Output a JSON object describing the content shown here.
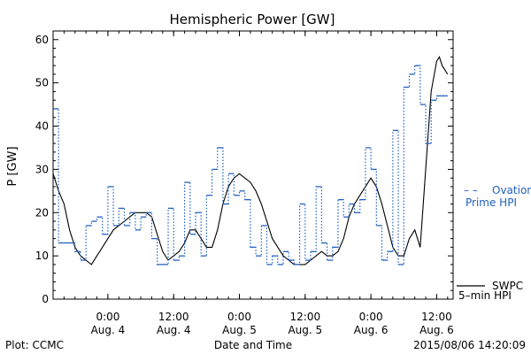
{
  "chart_data": {
    "type": "line",
    "title": "Hemispheric Power [GW]",
    "ylabel": "P [GW]",
    "xlabel": "Date and Time",
    "ylim": [
      0,
      62
    ],
    "xlim": [
      "2015-08-03 14:00",
      "2015-08-06 15:00"
    ],
    "yticks": [
      0,
      10,
      20,
      30,
      40,
      50,
      60
    ],
    "xticks": [
      {
        "x": "2015-08-04 00:00",
        "time": "0:00",
        "date": "Aug. 4"
      },
      {
        "x": "2015-08-04 12:00",
        "time": "12:00",
        "date": "Aug. 4"
      },
      {
        "x": "2015-08-05 00:00",
        "time": "0:00",
        "date": "Aug. 5"
      },
      {
        "x": "2015-08-05 12:00",
        "time": "12:00",
        "date": "Aug. 5"
      },
      {
        "x": "2015-08-06 00:00",
        "time": "0:00",
        "date": "Aug. 6"
      },
      {
        "x": "2015-08-06 12:00",
        "time": "12:00",
        "date": "Aug. 6"
      }
    ],
    "grid": false,
    "legend_placement": "right",
    "series": [
      {
        "name": "SWPC 5-min HPI",
        "style": "solid",
        "color": "#000000",
        "points": [
          [
            "2015-08-03 14:00",
            29
          ],
          [
            "2015-08-03 15:00",
            25
          ],
          [
            "2015-08-03 16:00",
            22
          ],
          [
            "2015-08-03 17:00",
            16
          ],
          [
            "2015-08-03 18:00",
            12
          ],
          [
            "2015-08-03 19:00",
            10
          ],
          [
            "2015-08-03 20:00",
            9
          ],
          [
            "2015-08-03 21:00",
            8
          ],
          [
            "2015-08-03 22:00",
            10
          ],
          [
            "2015-08-03 23:00",
            12
          ],
          [
            "2015-08-04 00:00",
            14
          ],
          [
            "2015-08-04 01:00",
            16
          ],
          [
            "2015-08-04 02:00",
            17
          ],
          [
            "2015-08-04 03:00",
            18
          ],
          [
            "2015-08-04 04:00",
            19
          ],
          [
            "2015-08-04 05:00",
            20
          ],
          [
            "2015-08-04 06:00",
            20
          ],
          [
            "2015-08-04 07:00",
            20
          ],
          [
            "2015-08-04 08:00",
            19
          ],
          [
            "2015-08-04 09:00",
            15
          ],
          [
            "2015-08-04 10:00",
            11
          ],
          [
            "2015-08-04 11:00",
            9
          ],
          [
            "2015-08-04 12:00",
            10
          ],
          [
            "2015-08-04 13:00",
            11
          ],
          [
            "2015-08-04 14:00",
            13
          ],
          [
            "2015-08-04 15:00",
            16
          ],
          [
            "2015-08-04 16:00",
            16
          ],
          [
            "2015-08-04 17:00",
            14
          ],
          [
            "2015-08-04 18:00",
            12
          ],
          [
            "2015-08-04 19:00",
            12
          ],
          [
            "2015-08-04 20:00",
            16
          ],
          [
            "2015-08-04 21:00",
            22
          ],
          [
            "2015-08-04 22:00",
            26
          ],
          [
            "2015-08-04 23:00",
            28
          ],
          [
            "2015-08-05 00:00",
            29
          ],
          [
            "2015-08-05 01:00",
            28
          ],
          [
            "2015-08-05 02:00",
            27
          ],
          [
            "2015-08-05 03:00",
            25
          ],
          [
            "2015-08-05 04:00",
            22
          ],
          [
            "2015-08-05 05:00",
            18
          ],
          [
            "2015-08-05 06:00",
            14
          ],
          [
            "2015-08-05 07:00",
            12
          ],
          [
            "2015-08-05 08:00",
            10
          ],
          [
            "2015-08-05 09:00",
            9
          ],
          [
            "2015-08-05 10:00",
            8
          ],
          [
            "2015-08-05 11:00",
            8
          ],
          [
            "2015-08-05 12:00",
            8
          ],
          [
            "2015-08-05 13:00",
            9
          ],
          [
            "2015-08-05 14:00",
            10
          ],
          [
            "2015-08-05 15:00",
            11
          ],
          [
            "2015-08-05 16:00",
            10
          ],
          [
            "2015-08-05 17:00",
            10
          ],
          [
            "2015-08-05 18:00",
            11
          ],
          [
            "2015-08-05 19:00",
            14
          ],
          [
            "2015-08-05 20:00",
            19
          ],
          [
            "2015-08-05 21:00",
            22
          ],
          [
            "2015-08-05 22:00",
            24
          ],
          [
            "2015-08-05 23:00",
            26
          ],
          [
            "2015-08-06 00:00",
            28
          ],
          [
            "2015-08-06 01:00",
            26
          ],
          [
            "2015-08-06 02:00",
            22
          ],
          [
            "2015-08-06 03:00",
            17
          ],
          [
            "2015-08-06 04:00",
            12
          ],
          [
            "2015-08-06 05:00",
            10
          ],
          [
            "2015-08-06 06:00",
            10
          ],
          [
            "2015-08-06 07:00",
            14
          ],
          [
            "2015-08-06 08:00",
            16
          ],
          [
            "2015-08-06 09:00",
            12
          ],
          [
            "2015-08-06 10:00",
            30
          ],
          [
            "2015-08-06 11:00",
            48
          ],
          [
            "2015-08-06 12:00",
            55
          ],
          [
            "2015-08-06 12:30",
            56
          ],
          [
            "2015-08-06 13:00",
            54
          ],
          [
            "2015-08-06 14:00",
            52
          ]
        ]
      },
      {
        "name": "Ovation Prime HPI",
        "style": "dotted-step",
        "color": "#1f5fbf",
        "points": [
          [
            "2015-08-03 14:00",
            44
          ],
          [
            "2015-08-03 15:00",
            13
          ],
          [
            "2015-08-03 17:00",
            13
          ],
          [
            "2015-08-03 18:00",
            11
          ],
          [
            "2015-08-03 19:00",
            9
          ],
          [
            "2015-08-03 20:00",
            17
          ],
          [
            "2015-08-03 21:00",
            18
          ],
          [
            "2015-08-03 22:00",
            19
          ],
          [
            "2015-08-03 23:00",
            15
          ],
          [
            "2015-08-04 00:00",
            26
          ],
          [
            "2015-08-04 01:00",
            17
          ],
          [
            "2015-08-04 02:00",
            21
          ],
          [
            "2015-08-04 03:00",
            17
          ],
          [
            "2015-08-04 04:00",
            20
          ],
          [
            "2015-08-04 05:00",
            16
          ],
          [
            "2015-08-04 06:00",
            19
          ],
          [
            "2015-08-04 07:00",
            20
          ],
          [
            "2015-08-04 08:00",
            14
          ],
          [
            "2015-08-04 09:00",
            8
          ],
          [
            "2015-08-04 11:00",
            21
          ],
          [
            "2015-08-04 12:00",
            9
          ],
          [
            "2015-08-04 13:00",
            10
          ],
          [
            "2015-08-04 14:00",
            27
          ],
          [
            "2015-08-04 15:00",
            15
          ],
          [
            "2015-08-04 16:00",
            20
          ],
          [
            "2015-08-04 17:00",
            10
          ],
          [
            "2015-08-04 18:00",
            24
          ],
          [
            "2015-08-04 19:00",
            30
          ],
          [
            "2015-08-04 20:00",
            35
          ],
          [
            "2015-08-04 21:00",
            22
          ],
          [
            "2015-08-04 22:00",
            29
          ],
          [
            "2015-08-04 23:00",
            24
          ],
          [
            "2015-08-05 00:00",
            25
          ],
          [
            "2015-08-05 01:00",
            23
          ],
          [
            "2015-08-05 02:00",
            12
          ],
          [
            "2015-08-05 03:00",
            10
          ],
          [
            "2015-08-05 04:00",
            17
          ],
          [
            "2015-08-05 05:00",
            8
          ],
          [
            "2015-08-05 06:00",
            10
          ],
          [
            "2015-08-05 07:00",
            8
          ],
          [
            "2015-08-05 08:00",
            11
          ],
          [
            "2015-08-05 09:00",
            9
          ],
          [
            "2015-08-05 10:00",
            8
          ],
          [
            "2015-08-05 11:00",
            22
          ],
          [
            "2015-08-05 12:00",
            9
          ],
          [
            "2015-08-05 13:00",
            11
          ],
          [
            "2015-08-05 14:00",
            26
          ],
          [
            "2015-08-05 15:00",
            13
          ],
          [
            "2015-08-05 16:00",
            9
          ],
          [
            "2015-08-05 17:00",
            12
          ],
          [
            "2015-08-05 18:00",
            23
          ],
          [
            "2015-08-05 19:00",
            19
          ],
          [
            "2015-08-05 20:00",
            22
          ],
          [
            "2015-08-05 21:00",
            20
          ],
          [
            "2015-08-05 22:00",
            23
          ],
          [
            "2015-08-05 23:00",
            35
          ],
          [
            "2015-08-06 00:00",
            30
          ],
          [
            "2015-08-06 01:00",
            17
          ],
          [
            "2015-08-06 02:00",
            9
          ],
          [
            "2015-08-06 03:00",
            11
          ],
          [
            "2015-08-06 04:00",
            39
          ],
          [
            "2015-08-06 05:00",
            8
          ],
          [
            "2015-08-06 06:00",
            49
          ],
          [
            "2015-08-06 07:00",
            52
          ],
          [
            "2015-08-06 08:00",
            54
          ],
          [
            "2015-08-06 09:00",
            45
          ],
          [
            "2015-08-06 10:00",
            36
          ],
          [
            "2015-08-06 11:00",
            46
          ],
          [
            "2015-08-06 12:00",
            47
          ],
          [
            "2015-08-06 14:00",
            47
          ]
        ]
      }
    ],
    "legend": [
      {
        "marker": "—",
        "lines": [
          "SWPC",
          "5–min HPI"
        ],
        "color": "#000000"
      },
      {
        "marker": "– –",
        "lines": [
          "Ovation",
          "Prime HPI"
        ],
        "color": "#1f5fbf"
      }
    ],
    "footer": {
      "left": "Plot: CCMC",
      "center": "Date and Time",
      "right": "2015/08/06 14:20:09"
    }
  }
}
